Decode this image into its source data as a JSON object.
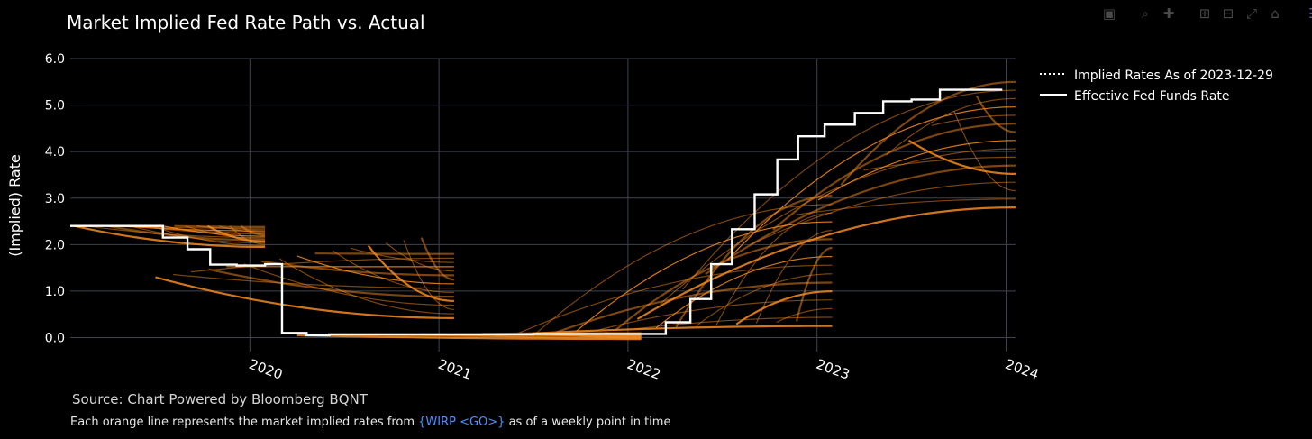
{
  "modebar": {
    "icons": [
      "camera-icon",
      "zoom-icon",
      "pan-icon",
      "zoom-in-icon",
      "zoom-out-icon",
      "autoscale-icon",
      "reset-axes-icon",
      "plotly-logo-icon"
    ]
  },
  "footer": {
    "source": "Source: Chart Powered by Bloomberg BQNT",
    "note_prefix": "Each orange line represents the market implied rates from ",
    "note_link": "{WIRP <GO>}",
    "note_suffix": " as of a weekly point in time"
  },
  "chart_data": {
    "type": "line",
    "title": "Market Implied Fed Rate Path vs. Actual",
    "ylabel": "(Implied) Rate",
    "xlabel": "",
    "xlim": [
      2019.05,
      2024.05
    ],
    "ylim": [
      -0.3,
      6.0
    ],
    "yticks": [
      0,
      1,
      2,
      3,
      4,
      5,
      6
    ],
    "ytick_labels": [
      "0.0",
      "1.0",
      "2.0",
      "3.0",
      "4.0",
      "5.0",
      "6.0"
    ],
    "xticks": [
      2020,
      2021,
      2022,
      2023,
      2024
    ],
    "xtick_labels": [
      "2020",
      "2021",
      "2022",
      "2023",
      "2024"
    ],
    "grid": true,
    "legend_position": "top-right",
    "legend": [
      {
        "label": "Implied Rates As of 2023-12-29",
        "style": "dotted",
        "color": "#ffffff"
      },
      {
        "label": "Effective Fed Funds Rate",
        "style": "solid",
        "color": "#ffffff"
      }
    ],
    "implied_color": "#f5891e",
    "effr_color": "#ffffff",
    "effective_fed_funds_rate": {
      "x": [
        2019.05,
        2019.42,
        2019.54,
        2019.67,
        2019.79,
        2019.93,
        2020.08,
        2020.17,
        2020.3,
        2020.42,
        2021.0,
        2021.5,
        2022.0,
        2022.08,
        2022.2,
        2022.33,
        2022.44,
        2022.55,
        2022.67,
        2022.79,
        2022.9,
        2023.04,
        2023.2,
        2023.35,
        2023.5,
        2023.65,
        2023.98
      ],
      "y": [
        2.4,
        2.4,
        2.15,
        1.9,
        1.57,
        1.55,
        1.58,
        0.1,
        0.05,
        0.07,
        0.07,
        0.08,
        0.08,
        0.08,
        0.33,
        0.83,
        1.58,
        2.33,
        3.08,
        3.83,
        4.33,
        4.58,
        4.83,
        5.08,
        5.12,
        5.33,
        5.33
      ]
    },
    "implied_groups": [
      {
        "x_start": 2019.07,
        "x_end": 2020.08,
        "start": [
          2.4,
          2.4
        ],
        "end": [
          1.95,
          2.38
        ]
      },
      {
        "x_start": 2019.5,
        "x_end": 2021.08,
        "start": [
          1.3,
          2.15
        ],
        "end": [
          0.42,
          1.8
        ]
      },
      {
        "x_start": 2020.25,
        "x_end": 2022.07,
        "start": [
          0.05,
          0.1
        ],
        "end": [
          -0.03,
          0.1
        ]
      },
      {
        "x_start": 2021.3,
        "x_end": 2023.08,
        "start": [
          0.05,
          0.35
        ],
        "end": [
          0.25,
          3.05
        ]
      },
      {
        "x_start": 2022.05,
        "x_end": 2024.05,
        "start": [
          0.4,
          5.2
        ],
        "end": [
          2.8,
          5.5
        ]
      }
    ]
  }
}
